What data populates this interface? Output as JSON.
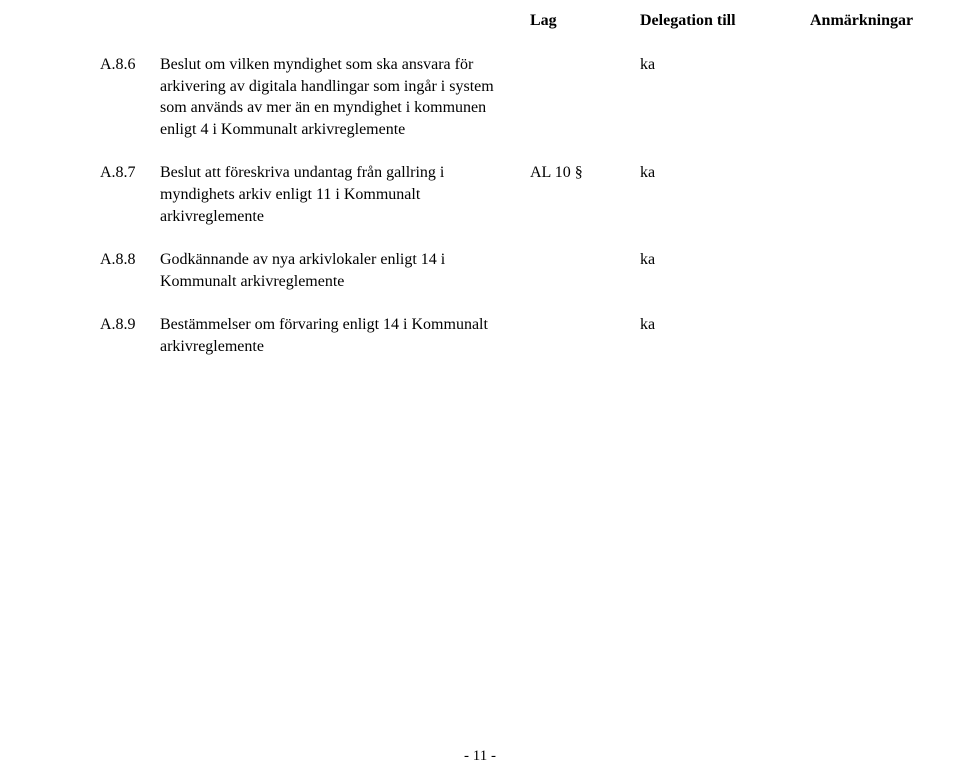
{
  "header": {
    "lag": "Lag",
    "delegation": "Delegation till",
    "anm": "Anmärkningar"
  },
  "items": [
    {
      "num": "A.8.6",
      "text": "Beslut om vilken myndighet som ska ansvara för arkivering av digitala handlingar som ingår i system som används av mer än en myndighet i kommunen enligt 4 i Kommunalt arkivreglemente",
      "lag": "",
      "delegation": "ka"
    },
    {
      "num": "A.8.7",
      "text": "Beslut att föreskriva undantag från gallring i myndighets arkiv enligt 11 i Kommunalt arkivreglemente",
      "lag": "AL 10 §",
      "delegation": "ka"
    },
    {
      "num": "A.8.8",
      "text": "Godkännande av nya arkivlokaler enligt 14 i Kommunalt arkivreglemente",
      "lag": "",
      "delegation": "ka"
    },
    {
      "num": "A.8.9",
      "text": "Bestämmelser om förvaring enligt 14 i Kommunalt arkivreglemente",
      "lag": "",
      "delegation": "ka"
    }
  ],
  "pageNumber": "- 11 -"
}
